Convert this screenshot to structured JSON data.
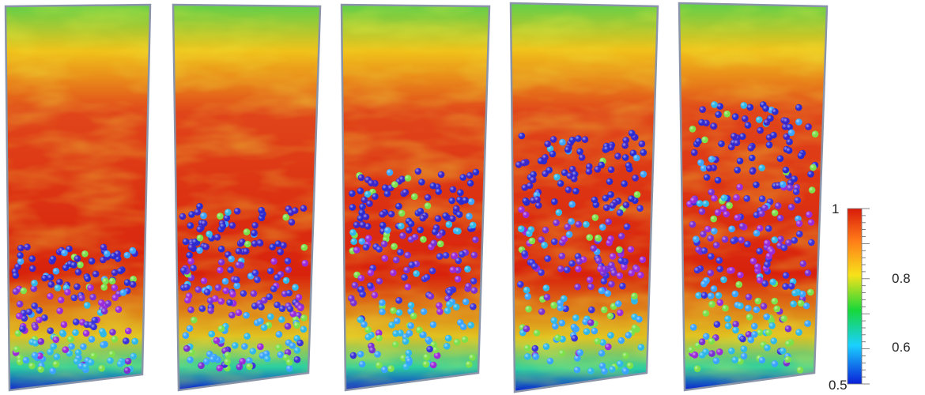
{
  "panels": [
    {
      "id": "snapshot-1",
      "bed_level": 0.36
    },
    {
      "id": "snapshot-2",
      "bed_level": 0.47
    },
    {
      "id": "snapshot-3",
      "bed_level": 0.56
    },
    {
      "id": "snapshot-4",
      "bed_level": 0.66
    },
    {
      "id": "snapshot-5",
      "bed_level": 0.74
    }
  ],
  "colorbar": {
    "min": 0.5,
    "max": 1,
    "ticks": [
      "1",
      "0.8",
      "0.6",
      "0.5"
    ],
    "tick_values": [
      1,
      0.8,
      0.6,
      0.5
    ],
    "colors": [
      "#0a1fd8",
      "#1ad0ff",
      "#17d83a",
      "#f7e21a",
      "#ff7a18",
      "#d81a0a"
    ]
  },
  "particle_colors": {
    "bottom": [
      "#2fb7e8",
      "#7be04a",
      "#39a3ff"
    ],
    "middle": [
      "#9b2ad8",
      "#3a32d8",
      "#7a2fd0"
    ],
    "top": [
      "#2a2bd0",
      "#3c26c8"
    ]
  }
}
